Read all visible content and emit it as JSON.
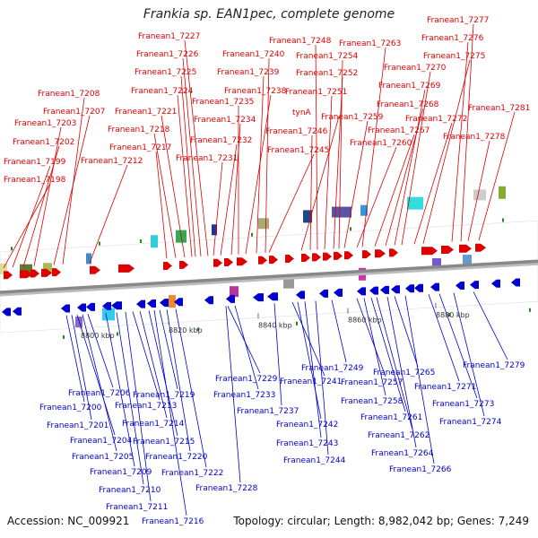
{
  "title": "Frankia sp. EAN1pec, complete genome",
  "footer": {
    "accession": "Accession: NC_009921",
    "summary": "Topology: circular; Length: 8,982,042 bp; Genes: 7,249"
  },
  "colors": {
    "forward": "#dd0000",
    "reverse": "#0000cc",
    "backbone": "#888888"
  },
  "scale_ticks": [
    "8800 kbp",
    "8820 kbp",
    "8840 kbp",
    "8860 kbp",
    "8880 kbp"
  ],
  "forward_genes": [
    "Franean1_7198",
    "Franean1_7199",
    "Franean1_7202",
    "Franean1_7203",
    "Franean1_7207",
    "Franean1_7208",
    "Franean1_7212",
    "Franean1_7217",
    "Franean1_7218",
    "Franean1_7221",
    "Franean1_7224",
    "Franean1_7225",
    "Franean1_7226",
    "Franean1_7227",
    "Franean1_7231",
    "Franean1_7232",
    "Franean1_7234",
    "Franean1_7235",
    "Franean1_7238",
    "Franean1_7239",
    "Franean1_7240",
    "Franean1_7245",
    "tynA",
    "Franean1_7246",
    "Franean1_7248",
    "Franean1_7251",
    "Franean1_7252",
    "Franean1_7254",
    "Franean1_7259",
    "Franean1_7260",
    "Franean1_7263",
    "Franean1_7267",
    "Franean1_7268",
    "Franean1_7269",
    "Franean1_7270",
    "Franean1_7272",
    "Franean1_7275",
    "Franean1_7276",
    "Franean1_7277",
    "Franean1_7278",
    "Franean1_7281"
  ],
  "reverse_genes": [
    "Franean1_7200",
    "Franean1_7201",
    "Franean1_7204",
    "Franean1_7205",
    "Franean1_7206",
    "Franean1_7209",
    "Franean1_7210",
    "Franean1_7211",
    "Franean1_7213",
    "Franean1_7214",
    "Franean1_7215",
    "Franean1_7216",
    "Franean1_7219",
    "Franean1_7220",
    "Franean1_7222",
    "Franean1_7228",
    "Franean1_7229",
    "Franean1_7233",
    "Franean1_7237",
    "Franean1_7241",
    "Franean1_7242",
    "Franean1_7243",
    "Franean1_7244",
    "Franean1_7249",
    "Franean1_7257",
    "Franean1_7258",
    "Franean1_7261",
    "Franean1_7262",
    "Franean1_7264",
    "Franean1_7265",
    "Franean1_7266",
    "Franean1_7271",
    "Franean1_7273",
    "Franean1_7274",
    "Franean1_7279"
  ]
}
